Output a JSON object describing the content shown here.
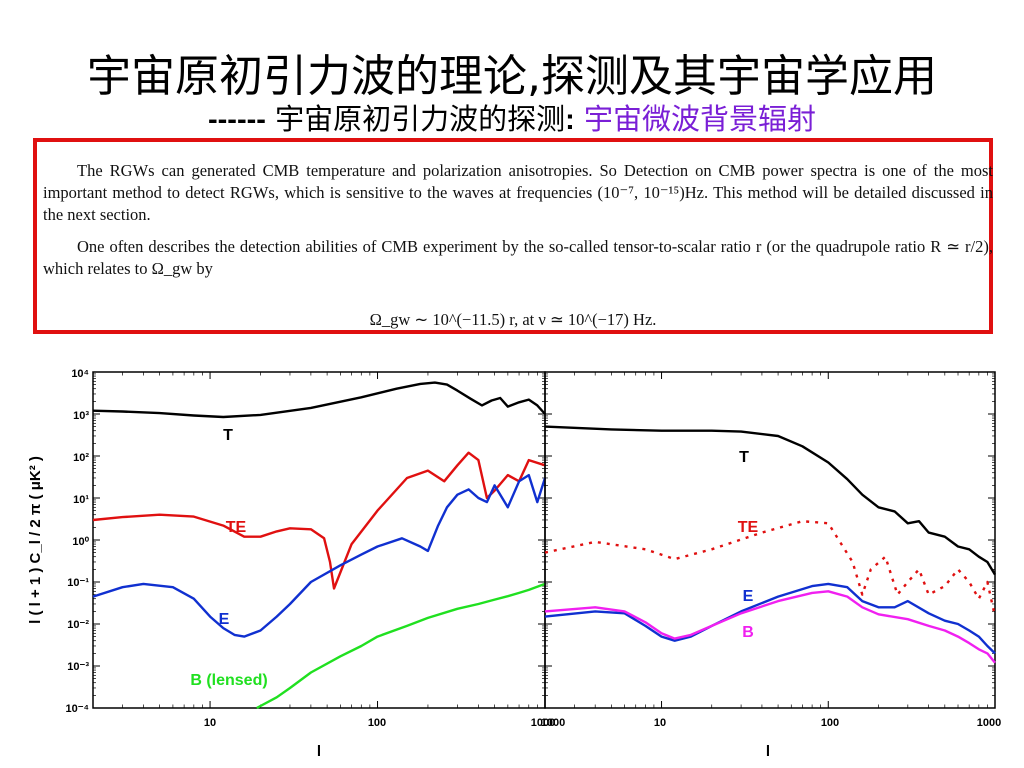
{
  "title": "宇宙原初引力波的理论,探测及其宇宙学应用",
  "subtitle": {
    "dashes": "------",
    "prefix": " 宇宙原初引力波的探测",
    "colon": ":",
    "highlight": " 宇宙微波背景辐射"
  },
  "text_box": {
    "para1": "The RGWs can generated CMB temperature and polarization anisotropies. So Detection on CMB power spectra is one of the most important method to detect RGWs, which is sensitive to the waves at frequencies (10⁻⁷, 10⁻¹⁵)Hz. This method will be detailed discussed in the next section.",
    "para2": "One often describes the detection abilities of CMB experiment by the so-called tensor-to-scalar ratio r (or the quadrupole ratio R ≃ r/2), which relates to Ω_gw by",
    "equation": "Ω_gw ∼ 10^(−11.5) r,  at  ν ≃ 10^(−17) Hz."
  },
  "figure": {
    "ylabel": "l ( l + 1 ) C_l / 2 π ( μK² )",
    "xlabel_left": "l",
    "xlabel_right": "l",
    "y_tick_labels": [
      "10⁴",
      "10³",
      "10²",
      "10¹",
      "10⁰",
      "10⁻¹",
      "10⁻²",
      "10⁻³",
      "10⁻⁴"
    ],
    "x_tick_labels_left": [
      "10",
      "100",
      "1000"
    ],
    "x_tick_labels_right": [
      "1000",
      "10",
      "100",
      "1000"
    ],
    "left_panel_labels": [
      "T",
      "TE",
      "E",
      "B (lensed)"
    ],
    "right_panel_labels": [
      "T",
      "TE",
      "E",
      "B"
    ],
    "colors": {
      "T": "#000000",
      "TE": "#e01010",
      "E": "#1030d0",
      "B_lensed": "#20e020",
      "B": "#f020f0"
    }
  },
  "chart_data": [
    {
      "type": "line",
      "panel": "left",
      "title": "",
      "xlabel": "l",
      "ylabel": "l ( l + 1 ) C_l / 2 π ( μK² )",
      "x_scale": "log",
      "y_scale": "log",
      "xlim": [
        2,
        1000
      ],
      "ylim": [
        0.0001,
        10000
      ],
      "series": [
        {
          "name": "T",
          "x": [
            2,
            3,
            5,
            8,
            12,
            20,
            40,
            80,
            130,
            180,
            220,
            260,
            300,
            360,
            420,
            480,
            540,
            600,
            700,
            800,
            900,
            1000
          ],
          "y": [
            1200,
            1150,
            1050,
            920,
            850,
            950,
            1400,
            2500,
            4000,
            5200,
            5600,
            5000,
            3600,
            2300,
            1600,
            2100,
            2400,
            1500,
            1900,
            2200,
            1600,
            1000
          ]
        },
        {
          "name": "TE",
          "x": [
            2,
            3,
            5,
            8,
            12,
            16,
            20,
            25,
            30,
            40,
            48,
            52,
            55,
            70,
            100,
            150,
            200,
            250,
            300,
            350,
            400,
            450,
            500,
            600,
            700,
            800,
            1000
          ],
          "y": [
            3,
            3.5,
            4,
            3.6,
            2.2,
            1.2,
            1.2,
            1.6,
            1.9,
            1.8,
            1.1,
            0.3,
            0.07,
            0.8,
            5,
            30,
            45,
            25,
            60,
            120,
            80,
            10,
            15,
            35,
            25,
            80,
            60
          ]
        },
        {
          "name": "E",
          "x": [
            2,
            3,
            4,
            6,
            8,
            10,
            12,
            14,
            16,
            20,
            25,
            30,
            40,
            60,
            80,
            100,
            140,
            180,
            200,
            230,
            260,
            300,
            350,
            400,
            450,
            500,
            600,
            700,
            800,
            900,
            1000
          ],
          "y": [
            0.045,
            0.075,
            0.09,
            0.075,
            0.04,
            0.015,
            0.008,
            0.0055,
            0.005,
            0.007,
            0.015,
            0.03,
            0.1,
            0.25,
            0.45,
            0.7,
            1.1,
            0.7,
            0.55,
            2.2,
            6,
            12,
            16,
            10,
            8,
            20,
            6,
            25,
            35,
            8,
            30
          ]
        },
        {
          "name": "B (lensed)",
          "x": [
            19,
            25,
            30,
            40,
            60,
            80,
            100,
            150,
            200,
            300,
            400,
            500,
            600,
            700,
            800,
            1000
          ],
          "y": [
            0.0001,
            0.00018,
            0.0003,
            0.0007,
            0.0017,
            0.003,
            0.005,
            0.009,
            0.014,
            0.023,
            0.03,
            0.038,
            0.046,
            0.055,
            0.065,
            0.09
          ]
        }
      ]
    },
    {
      "type": "line",
      "panel": "right",
      "title": "",
      "xlabel": "l",
      "ylabel": "",
      "x_scale": "log",
      "y_scale": "log",
      "xlim": [
        2,
        1000
      ],
      "ylim": [
        0.0001,
        10000
      ],
      "series": [
        {
          "name": "T",
          "x": [
            2,
            5,
            10,
            20,
            30,
            50,
            70,
            100,
            130,
            160,
            200,
            250,
            300,
            350,
            400,
            500,
            600,
            700,
            800,
            900,
            1000
          ],
          "y": [
            500,
            430,
            400,
            400,
            380,
            300,
            170,
            70,
            28,
            12,
            6,
            4.8,
            2.5,
            2.8,
            1.5,
            1.2,
            0.7,
            0.6,
            0.4,
            0.3,
            0.15
          ]
        },
        {
          "name": "TE",
          "x": [
            2,
            4,
            8,
            12,
            20,
            40,
            70,
            100,
            140,
            160,
            180,
            220,
            260,
            300,
            350,
            400,
            500,
            600,
            700,
            800,
            900,
            1000
          ],
          "y": [
            0.5,
            0.9,
            0.6,
            0.35,
            0.6,
            1.5,
            2.8,
            2.5,
            0.3,
            0.05,
            0.2,
            0.4,
            0.05,
            0.1,
            0.2,
            0.05,
            0.08,
            0.2,
            0.1,
            0.04,
            0.1,
            0.015
          ]
        },
        {
          "name": "E",
          "x": [
            2,
            4,
            6,
            8,
            10,
            12,
            15,
            20,
            30,
            50,
            80,
            100,
            130,
            160,
            200,
            250,
            300,
            400,
            500,
            600,
            700,
            800,
            900,
            1000
          ],
          "y": [
            0.015,
            0.02,
            0.018,
            0.009,
            0.005,
            0.004,
            0.005,
            0.009,
            0.02,
            0.045,
            0.08,
            0.09,
            0.075,
            0.035,
            0.025,
            0.025,
            0.035,
            0.018,
            0.012,
            0.01,
            0.007,
            0.005,
            0.003,
            0.002
          ]
        },
        {
          "name": "B",
          "x": [
            2,
            4,
            6,
            8,
            10,
            12,
            15,
            20,
            30,
            50,
            80,
            100,
            130,
            160,
            200,
            300,
            400,
            500,
            600,
            700,
            800,
            900,
            1000
          ],
          "y": [
            0.02,
            0.025,
            0.02,
            0.011,
            0.006,
            0.0045,
            0.0055,
            0.009,
            0.018,
            0.035,
            0.055,
            0.06,
            0.045,
            0.025,
            0.017,
            0.013,
            0.009,
            0.007,
            0.005,
            0.0035,
            0.0025,
            0.002,
            0.0012
          ]
        }
      ]
    }
  ]
}
